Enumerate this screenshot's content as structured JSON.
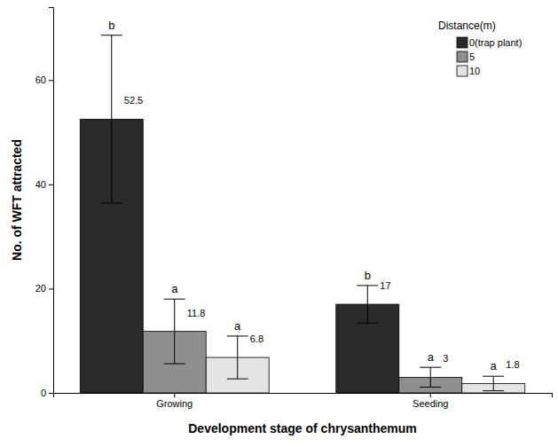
{
  "chart_data": {
    "type": "bar",
    "x_label": "Development stage of chrysanthemum",
    "y_label": "No. of WFT attracted",
    "legend_title": "Distance(m)",
    "categories": [
      "Growing",
      "Seeding"
    ],
    "series": [
      {
        "name": "0(trap plant)",
        "color": "#2a2a2a",
        "values": [
          52.5,
          17
        ],
        "errors": [
          16.1,
          3.6
        ],
        "letters": [
          "b",
          "b"
        ]
      },
      {
        "name": "5",
        "color": "#8f8f8f",
        "values": [
          11.8,
          3
        ],
        "errors": [
          6.2,
          1.9
        ],
        "letters": [
          "a",
          "a"
        ]
      },
      {
        "name": "10",
        "color": "#e4e4e4",
        "values": [
          6.8,
          1.8
        ],
        "errors": [
          4.1,
          1.4
        ],
        "letters": [
          "a",
          "a"
        ]
      }
    ],
    "ylim": [
      0,
      74
    ],
    "yticks": [
      0,
      20,
      40,
      60
    ],
    "legend": "top-right",
    "data_labels": true,
    "grid": false
  }
}
